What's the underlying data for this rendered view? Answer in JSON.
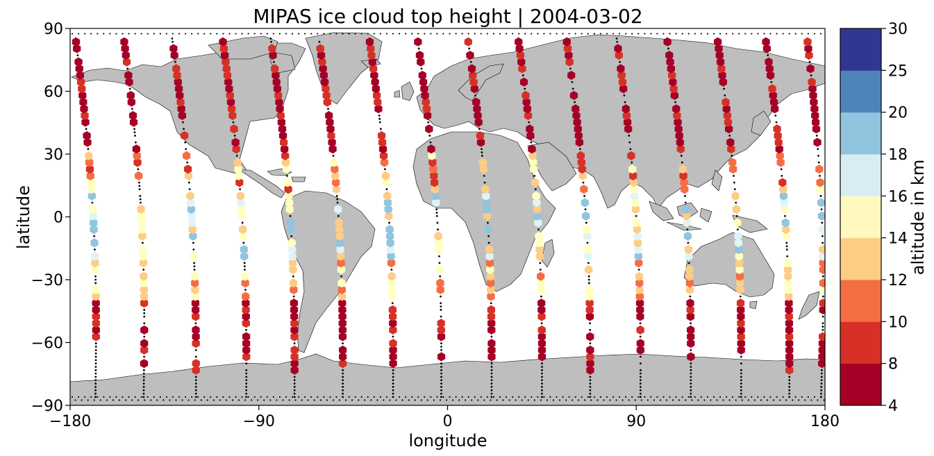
{
  "chart_data": {
    "type": "scatter",
    "title": "MIPAS ice cloud top height | 2004-03-02",
    "xlabel": "longitude",
    "ylabel": "latitude",
    "xlim": [
      -180,
      180
    ],
    "ylim": [
      -90,
      90
    ],
    "xticks": [
      -180,
      -90,
      0,
      90,
      180
    ],
    "xtick_labels": [
      "−180",
      "−90",
      "0",
      "90",
      "180"
    ],
    "yticks": [
      -90,
      -60,
      -30,
      0,
      30,
      60,
      90
    ],
    "ytick_labels": [
      "−90",
      "−60",
      "−30",
      "0",
      "30",
      "60",
      "90"
    ],
    "grid": false,
    "background_map": "coastlines, land shaded grey (#bebebe)",
    "colorbar": {
      "label": "altitude in km",
      "bounds": [
        4,
        8,
        10,
        12,
        14,
        16,
        18,
        20,
        25,
        30
      ],
      "tick_labels": [
        "4",
        "8",
        "10",
        "12",
        "14",
        "16",
        "18",
        "20",
        "25",
        "30"
      ],
      "colors": [
        "#a50026",
        "#d73027",
        "#f46d43",
        "#fdae61",
        "#fee090",
        "#ffffbf",
        "#e0f3f8",
        "#abd9e9",
        "#74add1",
        "#4575b4",
        "#313695"
      ]
    },
    "colors": {
      "land": "#bebebe",
      "track": "#000000",
      "c_4_8": "#a50026",
      "c_8_10": "#d73027",
      "c_10_12": "#f46d43",
      "c_12_14": "#fdae61",
      "c_14_16": "#ffffbf",
      "c_16_18": "#e0f3f8",
      "c_18_20": "#abd9e9",
      "c_20_25": "#74add1",
      "c_25_30": "#313695"
    },
    "orbit_tracks": [
      {
        "lon_start": -178,
        "lon_end": -168,
        "cloud_lat_range": [
          -62,
          88
        ]
      },
      {
        "lon_start": -155,
        "lon_end": -145,
        "cloud_lat_range": [
          -74,
          87
        ]
      },
      {
        "lon_start": -132,
        "lon_end": -120,
        "cloud_lat_range": [
          -74,
          85
        ]
      },
      {
        "lon_start": -108,
        "lon_end": -96,
        "cloud_lat_range": [
          -74,
          87
        ]
      },
      {
        "lon_start": -85,
        "lon_end": -73,
        "cloud_lat_range": [
          -74,
          85
        ]
      },
      {
        "lon_start": -62,
        "lon_end": -50,
        "cloud_lat_range": [
          -72,
          88
        ]
      },
      {
        "lon_start": -38,
        "lon_end": -26,
        "cloud_lat_range": [
          -74,
          88
        ]
      },
      {
        "lon_start": -15,
        "lon_end": -3,
        "cloud_lat_range": [
          -70,
          87
        ]
      },
      {
        "lon_start": 9,
        "lon_end": 21,
        "cloud_lat_range": [
          -70,
          86
        ]
      },
      {
        "lon_start": 33,
        "lon_end": 45,
        "cloud_lat_range": [
          -70,
          86
        ]
      },
      {
        "lon_start": 56,
        "lon_end": 68,
        "cloud_lat_range": [
          -74,
          88
        ]
      },
      {
        "lon_start": 80,
        "lon_end": 92,
        "cloud_lat_range": [
          -72,
          87
        ]
      },
      {
        "lon_start": 104,
        "lon_end": 116,
        "cloud_lat_range": [
          -70,
          88
        ]
      },
      {
        "lon_start": 128,
        "lon_end": 140,
        "cloud_lat_range": [
          -72,
          86
        ]
      },
      {
        "lon_start": 151,
        "lon_end": 163,
        "cloud_lat_range": [
          -74,
          85
        ]
      },
      {
        "lon_start": 171,
        "lon_end": 178,
        "cloud_lat_range": [
          -72,
          88
        ]
      }
    ],
    "cloud_height_profile_km": [
      {
        "lat_range": [
          60,
          90
        ],
        "typical_km": [
          4,
          10
        ]
      },
      {
        "lat_range": [
          30,
          60
        ],
        "typical_km": [
          4,
          10
        ]
      },
      {
        "lat_range": [
          10,
          30
        ],
        "typical_km": [
          8,
          16
        ]
      },
      {
        "lat_range": [
          -20,
          10
        ],
        "typical_km": [
          12,
          20
        ]
      },
      {
        "lat_range": [
          -40,
          -20
        ],
        "typical_km": [
          10,
          16
        ]
      },
      {
        "lat_range": [
          -90,
          -40
        ],
        "typical_km": [
          4,
          10
        ]
      }
    ]
  }
}
